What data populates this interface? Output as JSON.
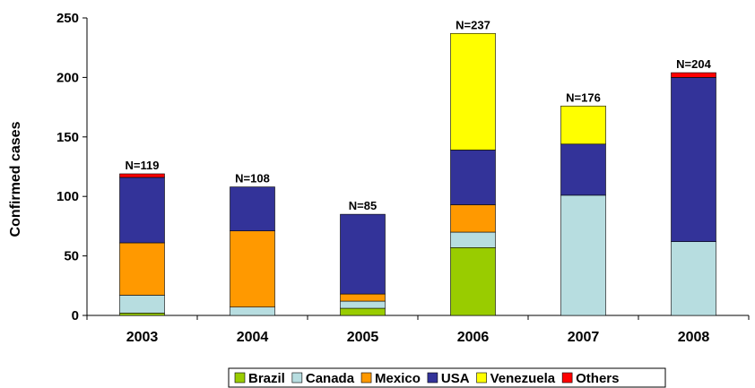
{
  "chart_data": {
    "type": "bar",
    "stacked": true,
    "categories": [
      "2003",
      "2004",
      "2005",
      "2006",
      "2007",
      "2008"
    ],
    "series": [
      {
        "name": "Brazil",
        "color": "#99cc00",
        "values": [
          2,
          0,
          6,
          57,
          0,
          0
        ]
      },
      {
        "name": "Canada",
        "color": "#b7dde0",
        "values": [
          15,
          7,
          6,
          13,
          101,
          62
        ]
      },
      {
        "name": "Mexico",
        "color": "#ff9900",
        "values": [
          44,
          64,
          6,
          23,
          0,
          0
        ]
      },
      {
        "name": "USA",
        "color": "#333399",
        "values": [
          55,
          37,
          67,
          46,
          43,
          138
        ]
      },
      {
        "name": "Venezuela",
        "color": "#ffff00",
        "values": [
          0,
          0,
          0,
          98,
          32,
          0
        ]
      },
      {
        "name": "Others",
        "color": "#ff0000",
        "values": [
          3,
          0,
          0,
          0,
          0,
          4
        ]
      }
    ],
    "data_labels": [
      "N=119",
      "N=108",
      "N=85",
      "N=237",
      "N=176",
      "N=204"
    ],
    "ylabel": "Confirmed cases",
    "xlabel": "",
    "ylim": [
      0,
      250
    ],
    "yticks": [
      0,
      50,
      100,
      150,
      200,
      250
    ],
    "grid": false,
    "legend_position": "bottom"
  }
}
